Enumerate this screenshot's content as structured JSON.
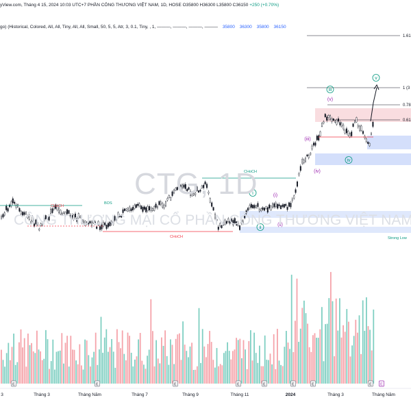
{
  "header": {
    "source": "yView.com, Tháng 4 15, 2024 10:03 UTC+7",
    "symbol": "PHẦN CÔNG THƯƠNG VIỆT NAM, 1D, HOSE",
    "ohlc": "O35800 H36300 L35800 C36150",
    "change": "+250 (+0.70%)",
    "indicator": "go) (Historical, Colored, All, All, Tiny, All, All, Small, 50, 5, 5, Atr, 3, 0.1, Tiny, , 1, ———, ———, ———, ———",
    "indicator_values": [
      "35800",
      "36300",
      "35800",
      "36150"
    ]
  },
  "watermark": {
    "ticker": "CTG, 1D",
    "name": "CÔNG THƯƠNG MẠI CỔ PHẦN CÔNG THƯƠNG VIỆT NAM"
  },
  "chart_data": {
    "type": "candlestick",
    "x_ticks": [
      "3",
      "Tháng 3",
      "Tháng Năm",
      "Tháng 7",
      "Tháng 9",
      "Tháng 11",
      "2024",
      "Tháng 3",
      "Tháng Năm"
    ],
    "fib_levels": [
      {
        "label": "1.61"
      },
      {
        "label": "1 (3"
      },
      {
        "label": "0.78"
      },
      {
        "label": "0.61"
      }
    ],
    "wave_labels": [
      "i",
      "ii",
      "iii",
      "iv",
      "v",
      "(i)",
      "(ii)",
      "(iii)",
      "(iv)",
      "(v)"
    ],
    "structure_labels": [
      "BOS",
      "CHoCH",
      "CHoCH",
      "CHoCH",
      "Strong Low"
    ],
    "event_markers": [
      "E",
      "E",
      "E",
      "E",
      "E",
      "E",
      "E",
      "E",
      "E",
      "E"
    ],
    "colors": {
      "up": "#089981",
      "down": "#f23645",
      "bos": "#089981",
      "choch": "#f23645",
      "zone": "#2962ff"
    }
  }
}
